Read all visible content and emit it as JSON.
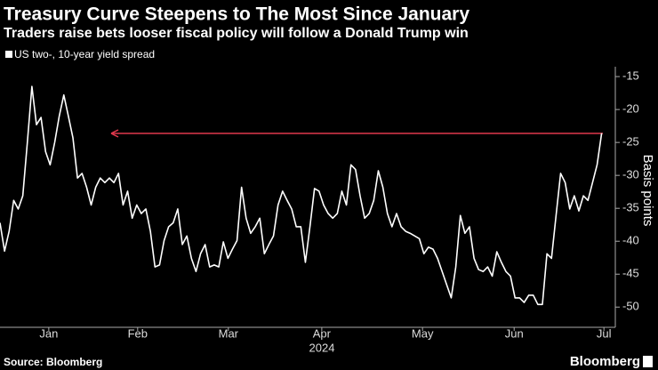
{
  "chart_data": {
    "type": "line",
    "title": "Treasury Curve Steepens to The Most Since January",
    "subtitle": "Traders raise bets looser fiscal policy will follow a Donald Trump win",
    "ylabel": "Basis points",
    "xlabel": "2024",
    "source": "Source: Bloomberg",
    "brand": "Bloomberg",
    "x": [
      0,
      1,
      2,
      3,
      4,
      5,
      6,
      7,
      8,
      9,
      10,
      11,
      12,
      13,
      14,
      15,
      16,
      17,
      18,
      19,
      20,
      21,
      22,
      23,
      24,
      25,
      26,
      27,
      28,
      29,
      30,
      31,
      32,
      33,
      34,
      35,
      36,
      37,
      38,
      39,
      40,
      41,
      42,
      43,
      44,
      45,
      46,
      47,
      48,
      49,
      50,
      51,
      52,
      53,
      54,
      55,
      56,
      57,
      58,
      59,
      60,
      61,
      62,
      63,
      64,
      65,
      66,
      67,
      68,
      69,
      70,
      71,
      72,
      73,
      74,
      75,
      76,
      77,
      78,
      79,
      80,
      81,
      82,
      83,
      84,
      85,
      86,
      87,
      88,
      89,
      90,
      91,
      92,
      93,
      94,
      95,
      96,
      97,
      98,
      99,
      100,
      101,
      102,
      103,
      104,
      105,
      106,
      107,
      108,
      109,
      110,
      111,
      112,
      113,
      114,
      115,
      116,
      117,
      118,
      119,
      120,
      121,
      122,
      123,
      124,
      125,
      126,
      127,
      128,
      129,
      130,
      131,
      132
    ],
    "series": [
      {
        "name": "US two-, 10-year yield spread",
        "color": "#ffffff",
        "values": [
          -37.2,
          -41.5,
          -38.5,
          -33.8,
          -35.1,
          -33.1,
          -25,
          -16.5,
          -22.3,
          -21.2,
          -26.4,
          -28.4,
          -25,
          -21,
          -17.8,
          -21,
          -24.3,
          -30.4,
          -29.7,
          -31.8,
          -34.5,
          -31.8,
          -30.4,
          -31.1,
          -30.4,
          -31.1,
          -29.7,
          -34.5,
          -32.4,
          -36.5,
          -34.5,
          -35.8,
          -35.1,
          -38.5,
          -43.9,
          -43.6,
          -39.9,
          -37.8,
          -37.2,
          -35.1,
          -40.5,
          -39.2,
          -42.6,
          -44.6,
          -41.9,
          -40.5,
          -43.9,
          -43.6,
          -43.9,
          -40.1,
          -42.6,
          -41.2,
          -39.9,
          -31.8,
          -36.5,
          -38.8,
          -37.8,
          -36.5,
          -41.9,
          -40.5,
          -39.2,
          -34.5,
          -32.4,
          -33.8,
          -35.1,
          -37.8,
          -37.8,
          -43.2,
          -37.8,
          -32,
          -32.4,
          -34.5,
          -35.8,
          -36.5,
          -35.8,
          -32.4,
          -34.5,
          -28.4,
          -29.1,
          -33.1,
          -36.5,
          -35.8,
          -33.8,
          -29.3,
          -31.8,
          -35.8,
          -37.8,
          -35.8,
          -37.8,
          -38.5,
          -38.8,
          -39.2,
          -39.6,
          -41.9,
          -40.9,
          -41.2,
          -42.6,
          -44.6,
          -46.6,
          -48.6,
          -43.9,
          -36.1,
          -38.8,
          -37.8,
          -42.6,
          -44.3,
          -44.6,
          -43.9,
          -45.3,
          -41.6,
          -43.2,
          -44.6,
          -45.3,
          -48.6,
          -48.6,
          -49.3,
          -48.2,
          -48.2,
          -49.6,
          -49.6,
          -41.9,
          -42.6,
          -36.1,
          -29.7,
          -31.1,
          -35.1,
          -33.1,
          -35.4,
          -33.1,
          -33.8,
          -31.1,
          -28.4,
          -23.6
        ]
      }
    ],
    "xlim": [
      0,
      135
    ],
    "xticks": [
      {
        "value": 10.7,
        "label": "Jan"
      },
      {
        "value": 30.2,
        "label": "Feb"
      },
      {
        "value": 50.1,
        "label": "Mar"
      },
      {
        "value": 70.6,
        "label": "Apr"
      },
      {
        "value": 92.7,
        "label": "May"
      },
      {
        "value": 112.8,
        "label": "Jun"
      },
      {
        "value": 132.5,
        "label": "Jul"
      }
    ],
    "ylim": [
      -52.8,
      -13.5
    ],
    "yticks": [
      -15,
      -20,
      -25,
      -30,
      -35,
      -40,
      -45,
      -50
    ]
  }
}
